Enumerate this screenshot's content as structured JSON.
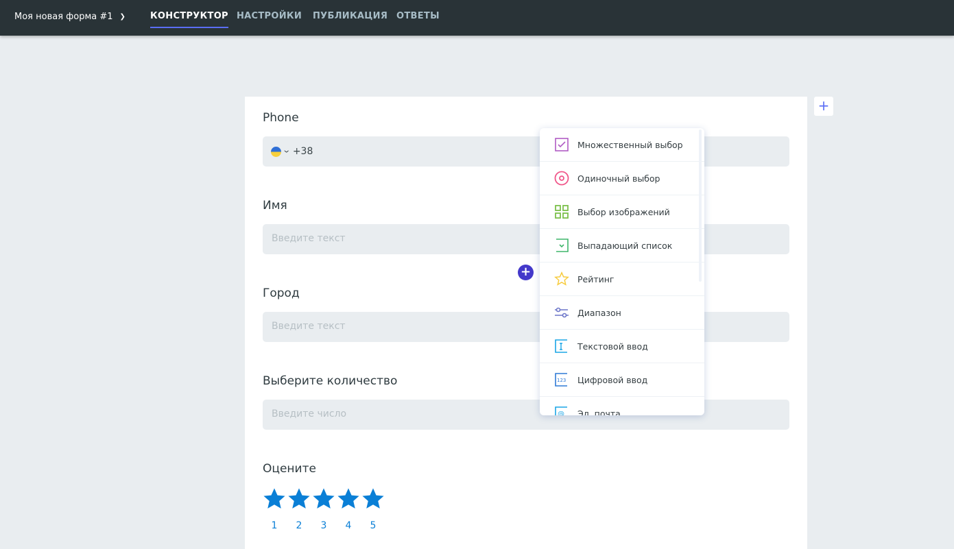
{
  "header": {
    "form_title": "Моя новая форма #1",
    "tabs": [
      {
        "label": "КОНСТРУКТОР",
        "active": true
      },
      {
        "label": "НАСТРОЙКИ"
      },
      {
        "label": "ПУБЛИКАЦИЯ"
      },
      {
        "label": "ОТВЕТЫ"
      }
    ]
  },
  "form": {
    "phone": {
      "label": "Phone",
      "country_flag": "ukraine-flag-icon",
      "code": "+38"
    },
    "fields": [
      {
        "label": "Имя",
        "placeholder": "Введите текст"
      },
      {
        "label": "Город",
        "placeholder": "Введите текст"
      },
      {
        "label": "Выберите количество",
        "placeholder": "Введите число"
      }
    ],
    "rating": {
      "label": "Оцените",
      "values": [
        "1",
        "2",
        "3",
        "4",
        "5"
      ],
      "color": "#0a7fd6"
    }
  },
  "menu": {
    "items": [
      {
        "label": "Множественный выбор",
        "icon": "checkbox-icon",
        "color": "#b05cc4"
      },
      {
        "label": "Одиночный выбор",
        "icon": "radio-icon",
        "color": "#f0578a"
      },
      {
        "label": "Выбор изображений",
        "icon": "image-grid-icon",
        "color": "#7cc04a"
      },
      {
        "label": "Выпадающий список",
        "icon": "dropdown-icon",
        "color": "#3fb56a"
      },
      {
        "label": "Рейтинг",
        "icon": "star-icon",
        "color": "#f7cb3c"
      },
      {
        "label": "Диапазон",
        "icon": "range-icon",
        "color": "#6b75c9"
      },
      {
        "label": "Текстовой ввод",
        "icon": "text-input-icon",
        "color": "#1aa5e6"
      },
      {
        "label": "Цифровой ввод",
        "icon": "number-input-icon",
        "color": "#2f7ad6"
      },
      {
        "label": "Эл. почта",
        "icon": "email-icon",
        "color": "#1aa5e6"
      }
    ]
  }
}
